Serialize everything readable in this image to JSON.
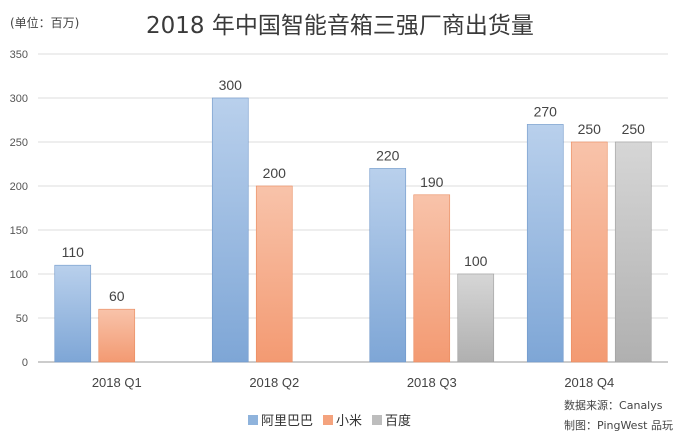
{
  "unit_label": "(单位：百万)",
  "chart_data": {
    "type": "bar",
    "title": "2018 年中国智能音箱三强厂商出货量",
    "categories": [
      "2018 Q1",
      "2018 Q2",
      "2018 Q3",
      "2018 Q4"
    ],
    "series": [
      {
        "name": "阿里巴巴",
        "values": [
          110,
          300,
          220,
          270
        ],
        "color": "#8fb3dc"
      },
      {
        "name": "小米",
        "values": [
          60,
          200,
          190,
          250
        ],
        "color": "#f4a37e"
      },
      {
        "name": "百度",
        "values": [
          null,
          null,
          100,
          250
        ],
        "color": "#bdbdbd"
      }
    ],
    "ylim": [
      0,
      350
    ],
    "yticks": [
      0,
      50,
      100,
      150,
      200,
      250,
      300,
      350
    ],
    "grid": true,
    "legend": "bottom"
  },
  "source": {
    "line1": "数据来源：Canalys",
    "line2": "制图：PingWest 品玩"
  }
}
